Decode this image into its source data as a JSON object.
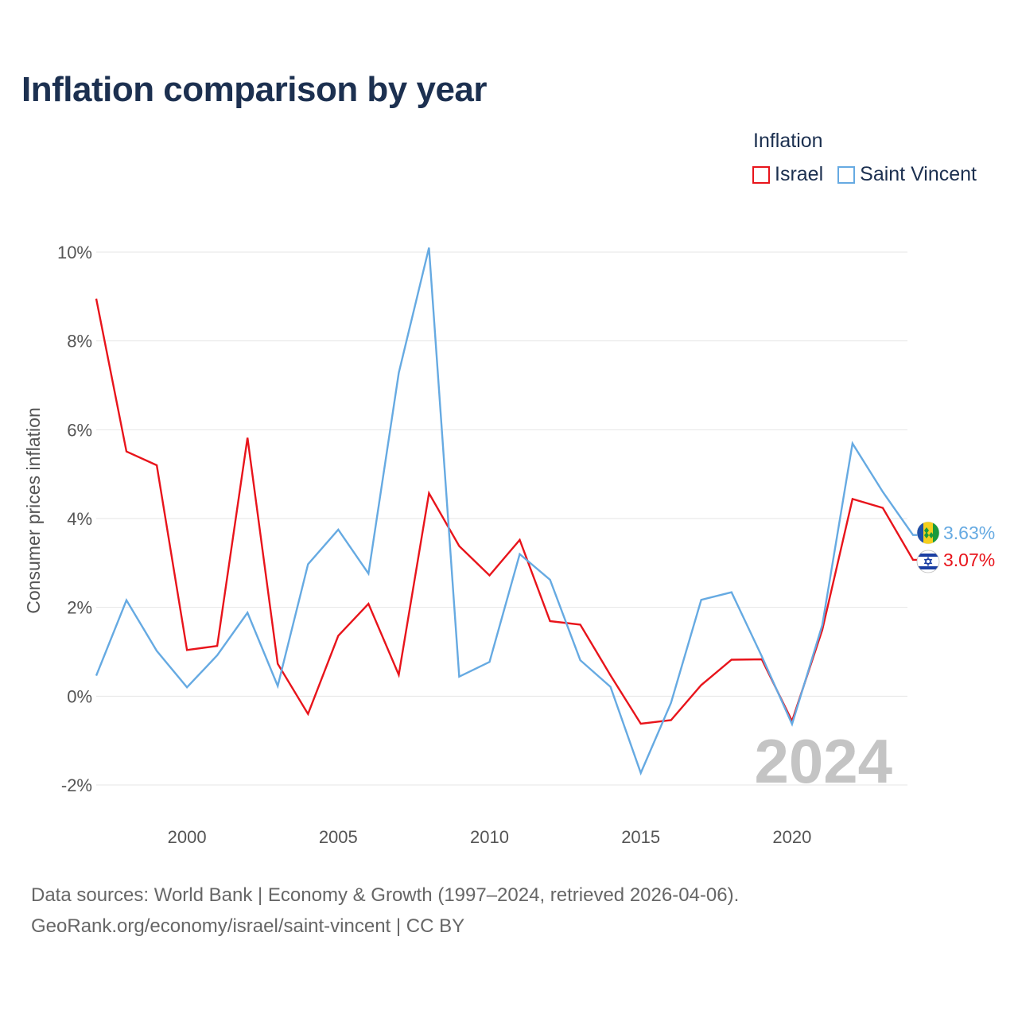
{
  "title": "Inflation comparison by year",
  "legend": {
    "title": "Inflation",
    "items": [
      {
        "label": "Israel",
        "color": "#e8141b"
      },
      {
        "label": "Saint Vincent",
        "color": "#66aae2"
      }
    ]
  },
  "chart_data": {
    "type": "line",
    "title": "Inflation comparison by year",
    "xlabel": "",
    "ylabel": "Consumer prices inflation",
    "x": [
      1997,
      1998,
      1999,
      2000,
      2001,
      2002,
      2003,
      2004,
      2005,
      2006,
      2007,
      2008,
      2009,
      2010,
      2011,
      2012,
      2013,
      2014,
      2015,
      2016,
      2017,
      2018,
      2019,
      2020,
      2021,
      2022,
      2023,
      2024
    ],
    "xlim": [
      1997,
      2024
    ],
    "ylim": [
      -2,
      10
    ],
    "xticks": [
      2000,
      2005,
      2010,
      2015,
      2020
    ],
    "yticks": [
      {
        "value": -2,
        "label": "-2%"
      },
      {
        "value": 0,
        "label": "0%"
      },
      {
        "value": 2,
        "label": "2%"
      },
      {
        "value": 4,
        "label": "4%"
      },
      {
        "value": 6,
        "label": "6%"
      },
      {
        "value": 8,
        "label": "8%"
      },
      {
        "value": 10,
        "label": "10%"
      }
    ],
    "grid": true,
    "series": [
      {
        "name": "Israel",
        "color": "#e8141b",
        "end_label": "3.07%",
        "flag": "israel-flag-icon",
        "values": [
          8.95,
          5.51,
          5.2,
          1.04,
          1.13,
          5.82,
          0.73,
          -0.4,
          1.36,
          2.08,
          0.48,
          4.57,
          3.38,
          2.72,
          3.52,
          1.69,
          1.61,
          0.47,
          -0.62,
          -0.54,
          0.25,
          0.82,
          0.83,
          -0.56,
          1.49,
          4.44,
          4.24,
          3.07
        ]
      },
      {
        "name": "Saint Vincent",
        "color": "#66aae2",
        "end_label": "3.63%",
        "flag": "saint-vincent-flag-icon",
        "values": [
          0.46,
          2.16,
          1.02,
          0.2,
          0.92,
          1.88,
          0.23,
          2.97,
          3.75,
          2.76,
          7.28,
          10.1,
          0.44,
          0.77,
          3.2,
          2.62,
          0.81,
          0.21,
          -1.73,
          -0.15,
          2.17,
          2.34,
          0.9,
          -0.63,
          1.6,
          5.69,
          4.6,
          3.63
        ]
      }
    ]
  },
  "watermark": "2024",
  "source": {
    "line1": "Data sources: World Bank | Economy & Growth (1997–2024, retrieved 2026-04-06).",
    "line2": "GeoRank.org/economy/israel/saint-vincent | CC BY"
  }
}
